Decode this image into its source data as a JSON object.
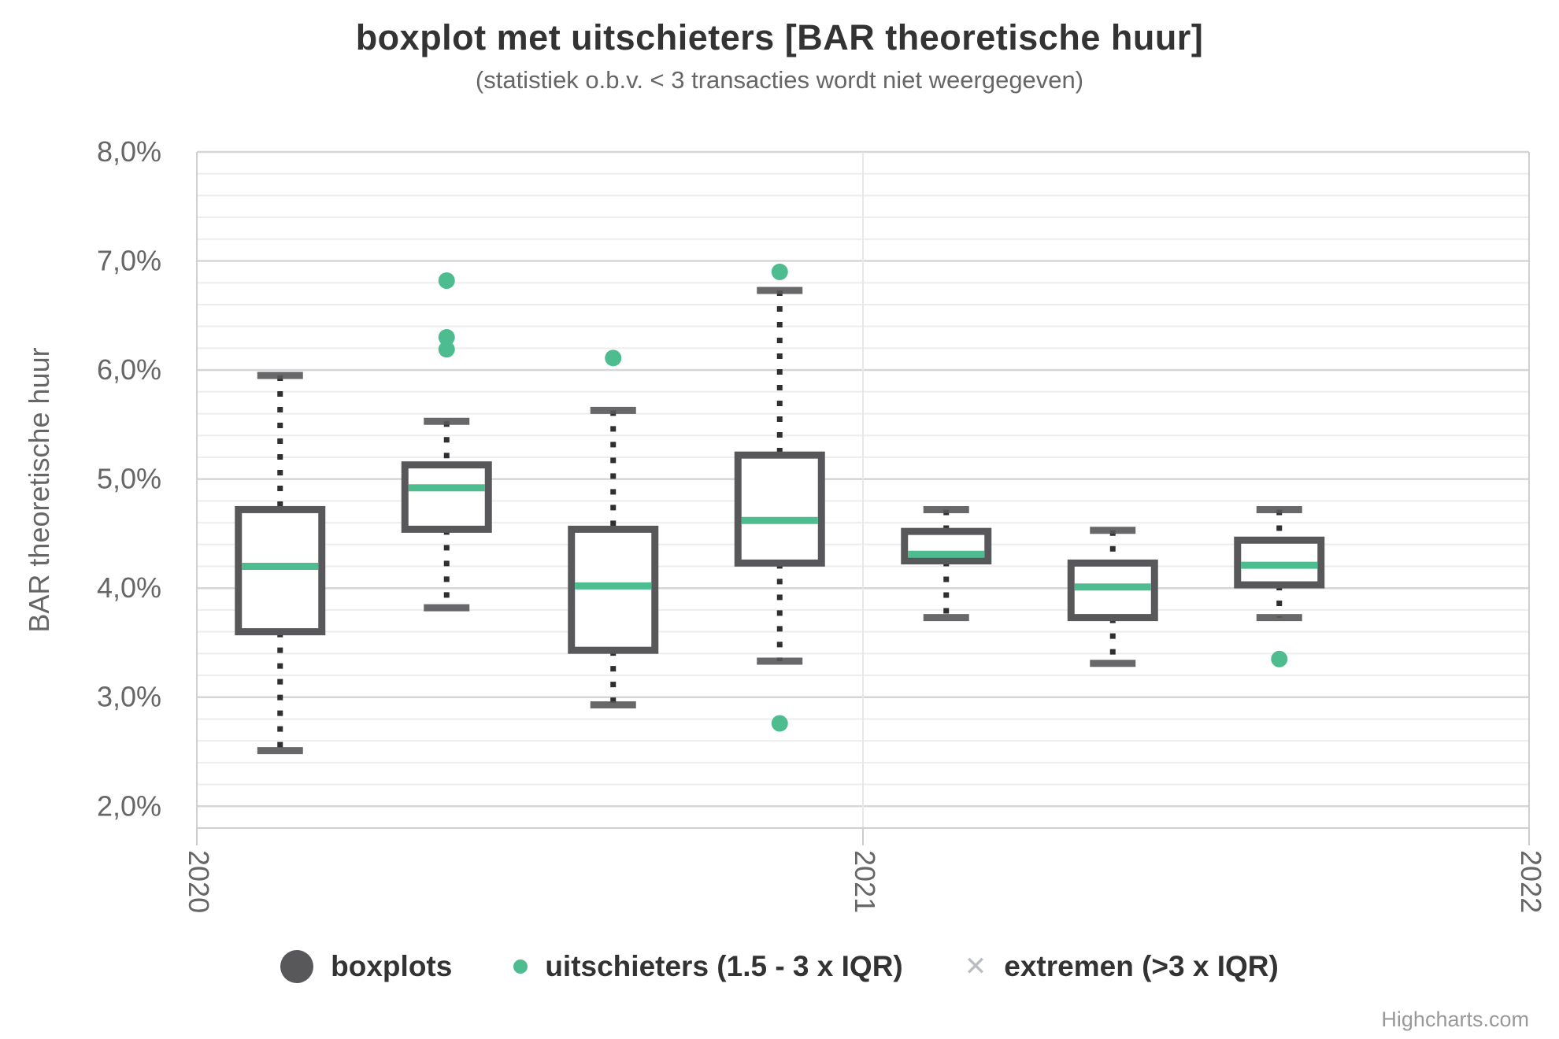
{
  "chart_data": {
    "type": "boxplot",
    "title": "boxplot met uitschieters [BAR theoretische huur]",
    "subtitle": "(statistiek o.b.v. < 3 transacties wordt niet weergegeven)",
    "ylabel": "BAR theoretische huur",
    "credits": "Highcharts.com",
    "ylim": [
      1.8,
      8.0
    ],
    "y_major_step": 1.0,
    "y_minor_step": 0.2,
    "grid": true,
    "yticks": [
      {
        "value": 8.0,
        "label": "8,0%"
      },
      {
        "value": 7.0,
        "label": "7,0%"
      },
      {
        "value": 6.0,
        "label": "6,0%"
      },
      {
        "value": 5.0,
        "label": "5,0%"
      },
      {
        "value": 4.0,
        "label": "4,0%"
      },
      {
        "value": 3.0,
        "label": "3,0%"
      },
      {
        "value": 2.0,
        "label": "2,0%"
      }
    ],
    "xticks": [
      {
        "label": "2020",
        "pos": 0.0
      },
      {
        "label": "2021",
        "pos": 0.5
      },
      {
        "label": "2022",
        "pos": 1.0
      }
    ],
    "boxes": [
      {
        "pos": 0.0625,
        "low": 2.51,
        "q1": 3.6,
        "median": 4.2,
        "q3": 4.72,
        "high": 5.95,
        "outliers": []
      },
      {
        "pos": 0.1875,
        "low": 3.82,
        "q1": 4.54,
        "median": 4.92,
        "q3": 5.13,
        "high": 5.53,
        "outliers": [
          6.19,
          6.3,
          6.82
        ]
      },
      {
        "pos": 0.3125,
        "low": 2.93,
        "q1": 3.43,
        "median": 4.02,
        "q3": 4.54,
        "high": 5.63,
        "outliers": [
          6.11
        ]
      },
      {
        "pos": 0.4375,
        "low": 3.33,
        "q1": 4.23,
        "median": 4.62,
        "q3": 5.22,
        "high": 6.73,
        "outliers": [
          2.76,
          6.9
        ]
      },
      {
        "pos": 0.5625,
        "low": 3.73,
        "q1": 4.25,
        "median": 4.31,
        "q3": 4.52,
        "high": 4.72,
        "outliers": []
      },
      {
        "pos": 0.6875,
        "low": 3.31,
        "q1": 3.73,
        "median": 4.01,
        "q3": 4.23,
        "high": 4.53,
        "outliers": []
      },
      {
        "pos": 0.8125,
        "low": 3.73,
        "q1": 4.03,
        "median": 4.21,
        "q3": 4.44,
        "high": 4.72,
        "outliers": [
          3.35
        ]
      }
    ],
    "legend": {
      "position": "bottom",
      "items": [
        {
          "label": "boxplots",
          "marker": "circle-large",
          "color": "#58585a"
        },
        {
          "label": "uitschieters (1.5 - 3 x IQR)",
          "marker": "circle-small",
          "color": "#4dbd8f"
        },
        {
          "label": "extremen (>3 x IQR)",
          "marker": "cross",
          "color": "#b9bcc0"
        }
      ]
    },
    "colors": {
      "box_border": "#58585a",
      "median": "#4dbd8f",
      "outlier": "#4dbd8f",
      "whisker": "#2f2f2f",
      "grid_minor": "#ededed",
      "grid_major": "#d6d6d6",
      "axis_line": "#d0d0d0",
      "tick_label": "#666666"
    }
  }
}
